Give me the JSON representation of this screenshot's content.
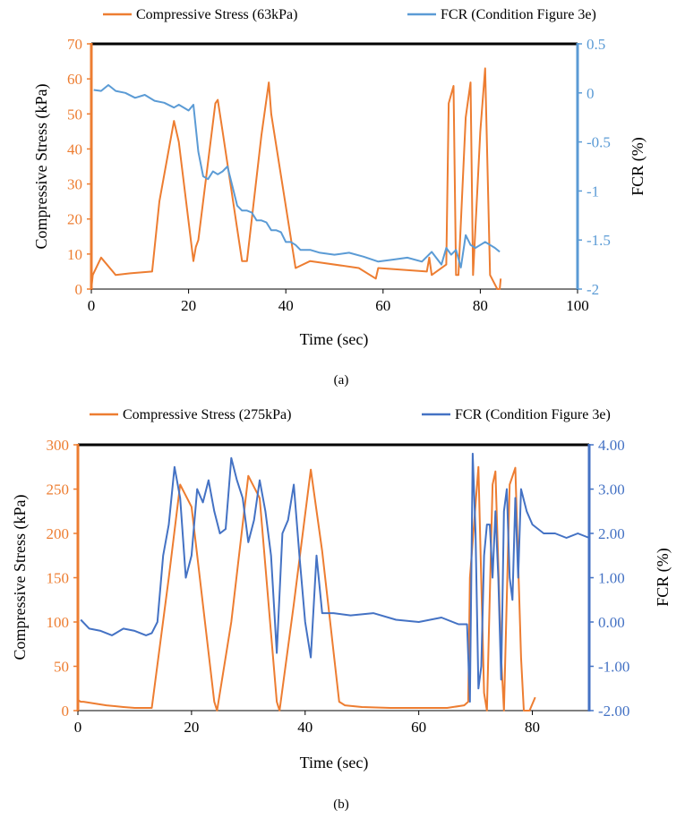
{
  "panels": [
    {
      "id": "a",
      "caption": "(a)",
      "legend": [
        "Compressive Stress (63kPa)",
        "FCR (Condition Figure 3e)"
      ],
      "colors": {
        "left": "#ED7D31",
        "right": "#5B9BD5"
      },
      "chart_data": {
        "type": "line",
        "xlabel": "Time (sec)",
        "ylabel_left": "Compressive Stress (kPa)",
        "ylabel_right": "FCR (%)",
        "xlim": [
          0,
          100
        ],
        "xticks": [
          0,
          20,
          40,
          60,
          80,
          100
        ],
        "ylim_left": [
          0,
          70
        ],
        "yticks_left": [
          0,
          10,
          20,
          30,
          40,
          50,
          60,
          70
        ],
        "ylim_right": [
          -2,
          0.5
        ],
        "yticks_right": [
          -2,
          -1.5,
          -1,
          -0.5,
          0,
          0.5
        ],
        "yticklabels_right": [
          "-2",
          "-1.5",
          "-1",
          "-0.5",
          "0",
          "0.5"
        ],
        "series": [
          {
            "name": "Compressive Stress (63kPa)",
            "axis": "left",
            "x": [
              0,
              0.3,
              2,
              5,
              8,
              12.5,
              14,
              17,
              18,
              21,
              21.5,
              22,
              25.5,
              26,
              27,
              31,
              32,
              35,
              36.5,
              37,
              42,
              45,
              55,
              58.5,
              59,
              69,
              69.5,
              70,
              73,
              73.5,
              74.5,
              75,
              75.5,
              77,
              78,
              78.5,
              80,
              81,
              82,
              83.5,
              84,
              84.2
            ],
            "values": [
              0,
              4,
              9,
              4,
              4.5,
              5,
              25,
              48,
              42,
              8,
              12,
              14,
              53,
              54,
              45,
              8,
              8,
              44,
              59,
              50,
              6,
              8,
              6,
              3,
              6,
              5,
              9,
              4,
              7,
              53,
              58,
              4,
              4,
              49,
              59,
              4,
              45,
              63,
              4,
              0,
              0,
              3
            ]
          },
          {
            "name": "FCR (Condition Figure 3e)",
            "axis": "right",
            "x": [
              0.5,
              2,
              3.5,
              5,
              7,
              9,
              11,
              13,
              15,
              17,
              18,
              19,
              20,
              21,
              22,
              23,
              24,
              25,
              26,
              27,
              28,
              29,
              30,
              31,
              32,
              33,
              34,
              35,
              36,
              37,
              38,
              39,
              40,
              41,
              42,
              43,
              45,
              47,
              50,
              53,
              56,
              59,
              62,
              65,
              68,
              70,
              72,
              73,
              74,
              75,
              76,
              77,
              78,
              79,
              80,
              81,
              82,
              83,
              84
            ],
            "values": [
              0.03,
              0.02,
              0.08,
              0.02,
              0.0,
              -0.05,
              -0.02,
              -0.08,
              -0.1,
              -0.15,
              -0.12,
              -0.15,
              -0.18,
              -0.12,
              -0.6,
              -0.85,
              -0.88,
              -0.8,
              -0.83,
              -0.8,
              -0.75,
              -0.95,
              -1.15,
              -1.2,
              -1.2,
              -1.22,
              -1.3,
              -1.3,
              -1.32,
              -1.4,
              -1.4,
              -1.42,
              -1.52,
              -1.52,
              -1.55,
              -1.6,
              -1.6,
              -1.63,
              -1.65,
              -1.63,
              -1.67,
              -1.72,
              -1.7,
              -1.68,
              -1.72,
              -1.62,
              -1.75,
              -1.58,
              -1.65,
              -1.6,
              -1.78,
              -1.45,
              -1.55,
              -1.58,
              -1.55,
              -1.52,
              -1.55,
              -1.58,
              -1.62
            ]
          }
        ]
      }
    },
    {
      "id": "b",
      "caption": "(b)",
      "legend": [
        "Compressive Stress (275kPa)",
        "FCR (Condition Figure 3e)"
      ],
      "colors": {
        "left": "#ED7D31",
        "right": "#4472C4"
      },
      "chart_data": {
        "type": "line",
        "xlabel": "Time (sec)",
        "ylabel_left": "Compressive Stress (kPa)",
        "ylabel_right": "FCR (%)",
        "xlim": [
          0,
          90
        ],
        "xticks": [
          0,
          20,
          40,
          60,
          80
        ],
        "ylim_left": [
          0,
          300
        ],
        "yticks_left": [
          0,
          50,
          100,
          150,
          200,
          250,
          300
        ],
        "ylim_right": [
          -2,
          4
        ],
        "yticks_right": [
          -2,
          -1,
          0,
          1,
          2,
          3,
          4
        ],
        "yticklabels_right": [
          "-2.00",
          "-1.00",
          "0.00",
          "1.00",
          "2.00",
          "3.00",
          "4.00"
        ],
        "series": [
          {
            "name": "Compressive Stress (275kPa)",
            "axis": "left",
            "x": [
              0,
              0.5,
              1,
              3,
              5,
              8,
              10,
              12,
              13,
              16,
              18,
              20,
              22,
              24,
              24.5,
              27,
              30,
              32,
              35,
              35.5,
              38,
              41,
              43,
              46,
              47,
              50,
              55,
              60,
              65,
              68,
              68.7,
              69,
              70.5,
              71.5,
              72,
              73,
              73.5,
              74.5,
              75,
              76,
              77,
              78,
              78.5,
              79,
              79.5,
              80.5
            ],
            "values": [
              12,
              10,
              10,
              8,
              6,
              4,
              3,
              3,
              3,
              150,
              255,
              230,
              120,
              10,
              0,
              100,
              265,
              240,
              10,
              0,
              120,
              272,
              180,
              10,
              6,
              4,
              3,
              3,
              3,
              6,
              10,
              150,
              275,
              20,
              0,
              255,
              270,
              60,
              0,
              255,
              274,
              60,
              0,
              0,
              0,
              15
            ]
          },
          {
            "name": "FCR (Condition Figure 3e)",
            "axis": "right",
            "x": [
              0.5,
              2,
              4,
              6,
              8,
              10,
              12,
              13,
              14,
              15,
              16,
              17,
              18,
              19,
              20,
              21,
              22,
              23,
              24,
              25,
              26,
              27,
              28,
              29,
              30,
              31,
              32,
              33,
              34,
              35,
              36,
              37,
              38,
              39,
              40,
              41,
              42,
              43,
              45,
              48,
              52,
              56,
              60,
              64,
              67,
              68.5,
              69,
              69.5,
              70,
              70.5,
              71,
              71.5,
              72,
              72.5,
              73,
              73.5,
              74,
              74.5,
              75,
              75.5,
              76,
              76.5,
              77,
              77.5,
              78,
              79,
              80,
              82,
              84,
              86,
              88,
              90
            ],
            "values": [
              0.05,
              -0.15,
              -0.2,
              -0.3,
              -0.15,
              -0.2,
              -0.3,
              -0.25,
              0.0,
              1.5,
              2.2,
              3.5,
              2.8,
              1.0,
              1.5,
              3.0,
              2.7,
              3.2,
              2.5,
              2.0,
              2.1,
              3.7,
              3.2,
              2.8,
              1.8,
              2.3,
              3.2,
              2.5,
              1.5,
              -0.7,
              2.0,
              2.3,
              3.1,
              1.5,
              0.0,
              -0.8,
              1.5,
              0.2,
              0.2,
              0.15,
              0.2,
              0.05,
              0.0,
              0.1,
              -0.05,
              -0.05,
              -1.8,
              3.8,
              2.0,
              -1.5,
              -1.0,
              1.5,
              2.2,
              2.2,
              1.0,
              2.5,
              1.0,
              -1.3,
              2.5,
              3.0,
              1.0,
              0.5,
              2.8,
              1.0,
              3.0,
              2.5,
              2.2,
              2.0,
              2.0,
              1.9,
              2.0,
              1.9
            ]
          }
        ]
      }
    }
  ]
}
